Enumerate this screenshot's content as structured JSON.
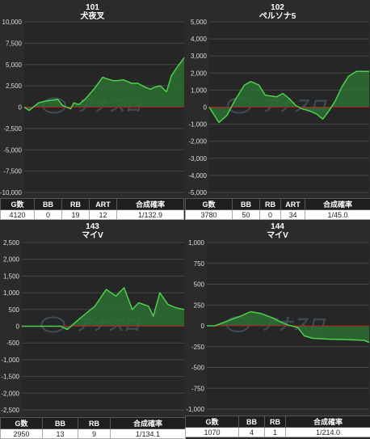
{
  "charts": [
    {
      "id": "101",
      "name": "犬夜叉",
      "ylim": [
        -10000,
        10000
      ],
      "step": 2500,
      "ticks": [
        "10,000",
        "7,500",
        "5,000",
        "2,500",
        "0",
        "-2,500",
        "-5,000",
        "-7,500",
        "-10,000"
      ],
      "watermark": "アナスロ",
      "x": [
        0,
        0.03,
        0.09,
        0.13,
        0.21,
        0.24,
        0.29,
        0.31,
        0.34,
        0.38,
        0.44,
        0.49,
        0.52,
        0.56,
        0.58,
        0.62,
        0.67,
        0.71,
        0.76,
        0.79,
        0.81,
        0.85,
        0.89,
        0.92,
        0.96,
        1
      ],
      "values": [
        0,
        -400,
        500,
        700,
        900,
        200,
        -200,
        500,
        300,
        900,
        2200,
        3500,
        3300,
        3100,
        3100,
        3200,
        2800,
        2800,
        2300,
        2100,
        2300,
        2500,
        1800,
        3700,
        4800,
        5800
      ],
      "table": {
        "headers": [
          "G数",
          "BB",
          "RB",
          "ART",
          "合成確率"
        ],
        "values": [
          "4120",
          "0",
          "19",
          "12",
          "1/132.9"
        ]
      }
    },
    {
      "id": "102",
      "name": "ペルソナ5",
      "ylim": [
        -5000,
        5000
      ],
      "step": 1000,
      "ticks": [
        "5,000",
        "4,000",
        "3,000",
        "2,000",
        "1,000",
        "0",
        "-1,000",
        "-2,000",
        "-3,000",
        "-4,000",
        "-5,000"
      ],
      "watermark": "アナスロ",
      "x": [
        0,
        0.06,
        0.11,
        0.16,
        0.22,
        0.26,
        0.31,
        0.35,
        0.42,
        0.46,
        0.5,
        0.54,
        0.58,
        0.62,
        0.67,
        0.71,
        0.75,
        0.79,
        0.83,
        0.87,
        0.92,
        0.96,
        1
      ],
      "values": [
        0,
        -900,
        -500,
        400,
        1300,
        1500,
        1300,
        700,
        600,
        800,
        500,
        100,
        -100,
        -200,
        -400,
        -700,
        -200,
        400,
        1200,
        1800,
        2100,
        2100,
        2100
      ],
      "table": {
        "headers": [
          "G数",
          "BB",
          "RB",
          "ART",
          "合成確率"
        ],
        "values": [
          "3780",
          "50",
          "0",
          "34",
          "1/45.0"
        ]
      }
    },
    {
      "id": "143",
      "name": "マイV",
      "ylim": [
        -2500,
        2500
      ],
      "step": 500,
      "ticks": [
        "2,500",
        "2,000",
        "1,500",
        "1,000",
        "500",
        "0",
        "-500",
        "-1,000",
        "-1,500",
        "-2,000",
        "-2,500"
      ],
      "watermark": "アナスロ",
      "x": [
        0,
        0.12,
        0.24,
        0.28,
        0.35,
        0.45,
        0.52,
        0.58,
        0.63,
        0.68,
        0.72,
        0.78,
        0.81,
        0.85,
        0.9,
        0.95,
        1
      ],
      "values": [
        0,
        0,
        0,
        -100,
        200,
        600,
        1100,
        900,
        1150,
        500,
        700,
        600,
        300,
        1000,
        650,
        550,
        500
      ],
      "table": {
        "headers": [
          "G数",
          "BB",
          "RB",
          "合成確率"
        ],
        "values": [
          "2950",
          "13",
          "9",
          "1/134.1"
        ]
      }
    },
    {
      "id": "144",
      "name": "マイV",
      "ylim": [
        -1000,
        1000
      ],
      "step": 250,
      "ticks": [
        "1,000",
        "750",
        "500",
        "250",
        "0",
        "-250",
        "-500",
        "-750",
        "-1,000"
      ],
      "watermark": "アナスロ",
      "x": [
        0,
        0.05,
        0.13,
        0.2,
        0.27,
        0.33,
        0.4,
        0.45,
        0.5,
        0.52,
        0.56,
        0.6,
        0.65,
        0.75,
        0.85,
        0.92,
        0.97,
        1
      ],
      "values": [
        0,
        0,
        60,
        110,
        170,
        150,
        100,
        50,
        10,
        0,
        -20,
        -120,
        -150,
        -160,
        -165,
        -170,
        -175,
        -200
      ],
      "table": {
        "headers": [
          "G数",
          "BB",
          "RB",
          "合成確率"
        ],
        "values": [
          "1070",
          "4",
          "1",
          "1/214.0"
        ]
      }
    }
  ],
  "colors": {
    "line": "#4cd14c",
    "fill": "#2d6e34",
    "zero": "#b81c1c",
    "grid": "#474747",
    "plot_bg": "#262626"
  }
}
